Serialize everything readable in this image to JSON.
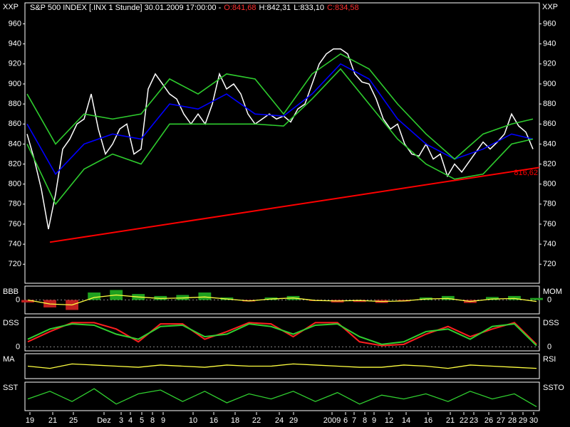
{
  "chart_data": {
    "type": "line",
    "title": "S&P 500 INDEX [.INX 1 Stunde] 30.01.2009 17:00:00 -",
    "open_label": "O:841,68",
    "high_label": "H:842,31",
    "low_label": "L:833,10",
    "close_label": "C:834,58",
    "symbol_left": "XXP",
    "symbol_right": "XXP",
    "xlim": [
      -0.3,
      71.9
    ],
    "ylim": [
      701,
      981
    ],
    "yticks": [
      720,
      740,
      760,
      780,
      800,
      820,
      840,
      860,
      880,
      900,
      920,
      940,
      960
    ],
    "xticks": [
      {
        "value": 0.4,
        "label": "19"
      },
      {
        "value": 3.6,
        "label": "21"
      },
      {
        "value": 6.5,
        "label": "25"
      },
      {
        "value": 10.8,
        "label": "Dez"
      },
      {
        "value": 13.2,
        "label": "3"
      },
      {
        "value": 14.5,
        "label": "4"
      },
      {
        "value": 16.1,
        "label": "5"
      },
      {
        "value": 17.6,
        "label": "8"
      },
      {
        "value": 19.1,
        "label": "9"
      },
      {
        "value": 23.3,
        "label": "10"
      },
      {
        "value": 26.2,
        "label": "16"
      },
      {
        "value": 29.2,
        "label": "18"
      },
      {
        "value": 32.2,
        "label": "22"
      },
      {
        "value": 35.4,
        "label": "24"
      },
      {
        "value": 37.4,
        "label": "29"
      },
      {
        "value": 42.8,
        "label": "2009"
      },
      {
        "value": 44.7,
        "label": "6"
      },
      {
        "value": 45.9,
        "label": "7"
      },
      {
        "value": 47.4,
        "label": "8"
      },
      {
        "value": 48.7,
        "label": "9"
      },
      {
        "value": 50.8,
        "label": "12"
      },
      {
        "value": 53.2,
        "label": "14"
      },
      {
        "value": 56.3,
        "label": "16"
      },
      {
        "value": 59.4,
        "label": "21"
      },
      {
        "value": 61.3,
        "label": "22"
      },
      {
        "value": 62.7,
        "label": "23"
      },
      {
        "value": 64.8,
        "label": "26"
      },
      {
        "value": 66.5,
        "label": "27"
      },
      {
        "value": 68.1,
        "label": "28"
      },
      {
        "value": 69.6,
        "label": "29"
      },
      {
        "value": 71.1,
        "label": "30"
      }
    ],
    "series": [
      {
        "color": "#ffffff",
        "values": [
          850,
          825,
          795,
          755,
          790,
          835,
          845,
          860,
          865,
          890,
          855,
          830,
          840,
          855,
          860,
          830,
          835,
          895,
          910,
          900,
          890,
          885,
          870,
          860,
          870,
          860,
          880,
          910,
          895,
          900,
          890,
          870,
          860,
          865,
          870,
          865,
          868,
          862,
          875,
          880,
          900,
          920,
          930,
          935,
          935,
          930,
          910,
          902,
          900,
          885,
          865,
          855,
          860,
          840,
          830,
          828,
          840,
          825,
          830,
          808,
          820,
          812,
          822,
          832,
          842,
          835,
          842,
          850,
          870,
          858,
          852,
          835
        ]
      },
      {
        "color": "#0000ff",
        "x": [
          0,
          4,
          8,
          12,
          16,
          20,
          24,
          28,
          32,
          36,
          40,
          44,
          48,
          52,
          56,
          60,
          64,
          68,
          71
        ],
        "values": [
          860,
          810,
          840,
          850,
          845,
          880,
          875,
          890,
          870,
          868,
          890,
          920,
          905,
          865,
          840,
          825,
          835,
          850,
          845
        ]
      },
      {
        "color": "#2ecc2e",
        "x": [
          0,
          4,
          8,
          12,
          16,
          20,
          24,
          28,
          32,
          36,
          40,
          44,
          48,
          52,
          56,
          60,
          64,
          68,
          71
        ],
        "values": [
          890,
          840,
          870,
          865,
          870,
          905,
          890,
          910,
          905,
          870,
          910,
          930,
          915,
          880,
          850,
          825,
          850,
          860,
          865
        ]
      },
      {
        "color": "#2ecc2e",
        "x": [
          0,
          4,
          8,
          12,
          16,
          20,
          24,
          28,
          32,
          36,
          40,
          44,
          48,
          52,
          56,
          60,
          64,
          68,
          71
        ],
        "values": [
          840,
          780,
          815,
          830,
          820,
          860,
          860,
          860,
          860,
          858,
          885,
          915,
          880,
          845,
          820,
          805,
          810,
          840,
          845
        ]
      }
    ],
    "trendline": {
      "color": "#ff0000",
      "x": [
        3.2,
        71.9
      ],
      "values": [
        742,
        816.62
      ],
      "end_label": "816,62"
    },
    "panels": [
      {
        "left_label": "BBB",
        "right_label": "MOM",
        "ylim": [
          -25,
          25
        ],
        "yticks": [
          0
        ],
        "bars": [
          -5,
          -15,
          -20,
          15,
          20,
          12,
          8,
          10,
          15,
          5,
          -3,
          5,
          8,
          -2,
          -5,
          -4,
          -6,
          -3,
          5,
          8,
          -6,
          6,
          8,
          4
        ],
        "lines": [
          {
            "color": "#ffff40",
            "values": [
              0,
              -8,
              -10,
              5,
              10,
              6,
              3,
              4,
              6,
              2,
              -2,
              2,
              4,
              -1,
              -2,
              -1,
              -3,
              -2,
              2,
              3,
              -3,
              2,
              3,
              -3
            ]
          }
        ]
      },
      {
        "left_label": "DSS",
        "right_label": "DSS",
        "ylim": [
          -10,
          110
        ],
        "yticks": [
          0
        ],
        "lines": [
          {
            "color": "#ff2020",
            "values": [
              20,
              60,
              95,
              95,
              70,
              20,
              90,
              90,
              30,
              60,
              95,
              90,
              40,
              95,
              95,
              20,
              5,
              10,
              50,
              80,
              40,
              70,
              95,
              10
            ]
          },
          {
            "color": "#30d030",
            "values": [
              30,
              70,
              90,
              85,
              50,
              30,
              80,
              85,
              40,
              50,
              90,
              80,
              50,
              85,
              90,
              40,
              10,
              20,
              60,
              70,
              30,
              80,
              90,
              5
            ]
          }
        ]
      },
      {
        "left_label": "MA",
        "right_label": "RSI",
        "ylim": [
          0,
          100
        ],
        "lines": [
          {
            "color": "#ffff40",
            "values": [
              50,
              40,
              60,
              55,
              50,
              45,
              55,
              50,
              45,
              55,
              50,
              50,
              60,
              55,
              50,
              45,
              45,
              55,
              50,
              40,
              55,
              50,
              45,
              40
            ]
          }
        ]
      },
      {
        "left_label": "SST",
        "right_label": "SSTO",
        "ylim": [
          0,
          100
        ],
        "lines": [
          {
            "color": "#30d030",
            "values": [
              40,
              70,
              30,
              80,
              20,
              60,
              75,
              30,
              70,
              25,
              60,
              40,
              70,
              30,
              65,
              20,
              55,
              40,
              60,
              30,
              70,
              40,
              60,
              10
            ]
          }
        ]
      }
    ]
  }
}
